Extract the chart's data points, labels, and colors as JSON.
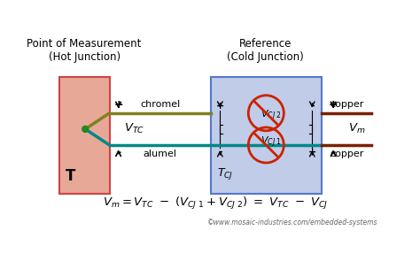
{
  "title_left": "Point of Measurement\n(Hot Junction)",
  "title_right": "Reference\n(Cold Junction)",
  "hot_box_color": "#e8a898",
  "cold_box_color": "#c0cce8",
  "chromel_color": "#808020",
  "alumel_color": "#008888",
  "copper_color": "#7a2000",
  "junction_color": "#228822",
  "diode_color": "#cc2200",
  "label_chromel": "chromel",
  "label_alumel": "alumel",
  "label_copper_top": "copper",
  "label_copper_bot": "copper",
  "label_T": "T",
  "label_TCJ": "$T_{CJ}$",
  "watermark": "©www.mosaic-industries.com/embedded-systems",
  "bg_color": "#ffffff",
  "text_color": "#000000"
}
